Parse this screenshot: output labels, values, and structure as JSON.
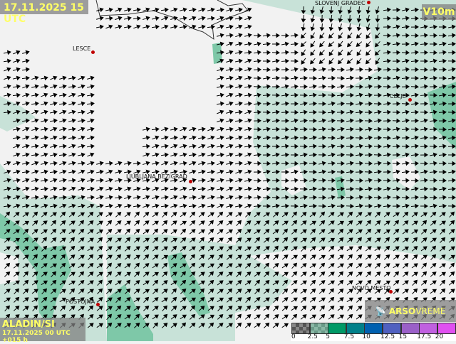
{
  "header": {
    "datetime": "17.11.2025 15 UTC",
    "variable": "V10m"
  },
  "model": {
    "name": "ALADIN/SI",
    "run": "17.11.2025 00 UTC +015 h"
  },
  "brand": {
    "icon": "satellite-dish-icon",
    "name_bold": "ARSO",
    "name_light": "VREME"
  },
  "cities": [
    {
      "name": "SLOVENJ GRADEC"
    },
    {
      "name": "LESCE"
    },
    {
      "name": "CELJE"
    },
    {
      "name": "LJUBLJANA BEZIGRAD"
    },
    {
      "name": "POSTOJNA"
    },
    {
      "name": "NOVO MESTO"
    }
  ],
  "legend": {
    "labels": [
      "0",
      "2.5",
      "5",
      "7.5",
      "10",
      "12.5",
      "15",
      "17.5",
      "20"
    ],
    "colors": [
      "#555555",
      "#6a9a88",
      "#009966",
      "#00808a",
      "#0060b0",
      "#5060c0",
      "#9a60c8",
      "#c060e0",
      "#e050f0"
    ]
  },
  "colors": {
    "land": "#f2f2f2",
    "wind_2_5_5": "#c8e2d8",
    "wind_5_plus": "#7ec8a8",
    "title_text": "#ffff66",
    "border": "#333333"
  }
}
